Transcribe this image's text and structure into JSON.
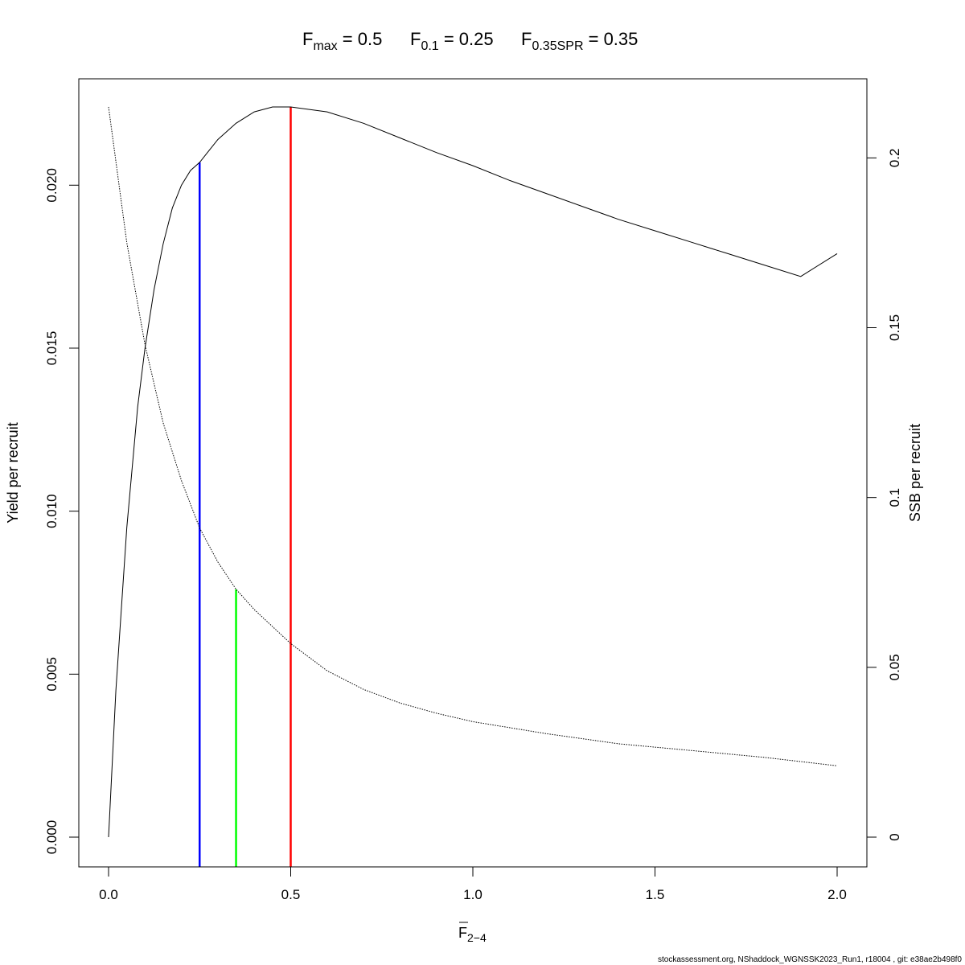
{
  "title": {
    "parts": [
      {
        "base": "F",
        "sub": "max",
        "value": "0.5"
      },
      {
        "base": "F",
        "sub": "0.1",
        "value": "0.25"
      },
      {
        "base": "F",
        "sub": "0.35SPR",
        "value": "0.35"
      }
    ]
  },
  "footer": "stockassessment.org, NShaddock_WGNSSK2023_Run1, r18004 , git: e38ae2b498f0",
  "chart_data": {
    "type": "line",
    "xlabel": {
      "base": "F",
      "sub": "2−4"
    },
    "ylabel_left": "Yield per recruit",
    "ylabel_right": "SSB per recruit",
    "xlim": [
      0,
      2
    ],
    "ylim_left": [
      0,
      0.0224
    ],
    "ylim_right": [
      0,
      0.215
    ],
    "x_ticks": [
      "0.0",
      "0.5",
      "1.0",
      "1.5",
      "2.0"
    ],
    "y_ticks_left": [
      "0.000",
      "0.005",
      "0.010",
      "0.015",
      "0.020"
    ],
    "y_ticks_right": [
      "0",
      "0.05",
      "0.1",
      "0.15",
      "0.2"
    ],
    "grid": false,
    "series": [
      {
        "axis": "left",
        "style": "solid",
        "color": "#000000",
        "x": [
          0,
          0.02,
          0.05,
          0.08,
          0.1,
          0.125,
          0.15,
          0.175,
          0.2,
          0.225,
          0.25,
          0.3,
          0.35,
          0.4,
          0.45,
          0.5,
          0.6,
          0.7,
          0.8,
          0.9,
          1.0,
          1.1,
          1.2,
          1.3,
          1.4,
          1.5,
          1.6,
          1.7,
          1.8,
          1.9,
          2.0
        ],
        "y": [
          0,
          0.0045,
          0.0095,
          0.0132,
          0.015,
          0.0168,
          0.0182,
          0.0193,
          0.02,
          0.02045,
          0.0207,
          0.0214,
          0.0219,
          0.02225,
          0.0224,
          0.0224,
          0.02225,
          0.0219,
          0.02145,
          0.021,
          0.0206,
          0.02015,
          0.01975,
          0.01935,
          0.01895,
          0.0186,
          0.01825,
          0.0179,
          0.01755,
          0.0172,
          0.0179
        ]
      },
      {
        "axis": "right",
        "style": "dotted",
        "color": "#000000",
        "x": [
          0,
          0.05,
          0.1,
          0.15,
          0.2,
          0.25,
          0.3,
          0.35,
          0.4,
          0.5,
          0.6,
          0.7,
          0.8,
          0.9,
          1.0,
          1.2,
          1.4,
          1.6,
          1.8,
          2.0
        ],
        "y": [
          0.215,
          0.175,
          0.145,
          0.122,
          0.105,
          0.091,
          0.081,
          0.073,
          0.067,
          0.057,
          0.049,
          0.0435,
          0.0395,
          0.0365,
          0.034,
          0.0305,
          0.0275,
          0.0255,
          0.0235,
          0.021
        ]
      }
    ],
    "reference_lines": [
      {
        "name": "Fmax",
        "x": 0.5,
        "color": "#ff0000",
        "y_top": 0.0224
      },
      {
        "name": "F0.1",
        "x": 0.25,
        "color": "#0000ff",
        "y_top": 0.0207
      },
      {
        "name": "F0.35SPR",
        "x": 0.35,
        "color": "#00ff00",
        "y_top": 0.0076
      }
    ]
  }
}
